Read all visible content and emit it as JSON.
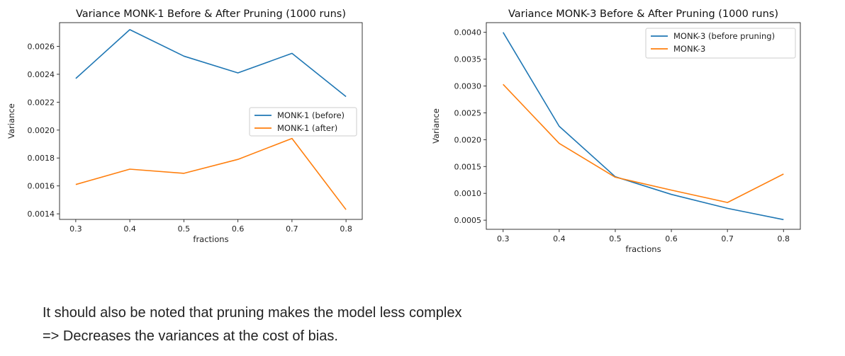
{
  "chart_data": [
    {
      "type": "line",
      "title": "Variance MONK-1 Before & After Pruning (1000 runs)",
      "xlabel": "fractions",
      "ylabel": "Variance",
      "x": [
        0.3,
        0.4,
        0.5,
        0.6,
        0.7,
        0.8
      ],
      "xticks": [
        "0.3",
        "0.4",
        "0.5",
        "0.6",
        "0.7",
        "0.8"
      ],
      "yticks": [
        "0.0014",
        "0.0016",
        "0.0018",
        "0.0020",
        "0.0022",
        "0.0024",
        "0.0026"
      ],
      "xlim": [
        0.27,
        0.83
      ],
      "ylim": [
        0.00136,
        0.00277
      ],
      "legend_position": "center-right",
      "grid": false,
      "series": [
        {
          "name": "MONK-1 (before)",
          "color": "#1f77b4",
          "values": [
            0.00237,
            0.00272,
            0.00253,
            0.00241,
            0.00255,
            0.00224
          ]
        },
        {
          "name": "MONK-1 (after)",
          "color": "#ff7f0e",
          "values": [
            0.00161,
            0.00172,
            0.00169,
            0.00179,
            0.00194,
            0.00143
          ]
        }
      ]
    },
    {
      "type": "line",
      "title": "Variance MONK-3 Before & After Pruning (1000 runs)",
      "xlabel": "fractions",
      "ylabel": "Variance",
      "x": [
        0.3,
        0.4,
        0.5,
        0.6,
        0.7,
        0.8
      ],
      "xticks": [
        "0.3",
        "0.4",
        "0.5",
        "0.6",
        "0.7",
        "0.8"
      ],
      "yticks": [
        "0.0005",
        "0.0010",
        "0.0015",
        "0.0020",
        "0.0025",
        "0.0030",
        "0.0035",
        "0.0040"
      ],
      "xlim": [
        0.27,
        0.83
      ],
      "ylim": [
        0.00033,
        0.00418
      ],
      "legend_position": "top-right",
      "grid": false,
      "series": [
        {
          "name": "MONK-3 (before pruning)",
          "color": "#1f77b4",
          "values": [
            0.004,
            0.00225,
            0.00131,
            0.00098,
            0.00072,
            0.00051
          ]
        },
        {
          "name": "MONK-3",
          "color": "#ff7f0e",
          "values": [
            0.00303,
            0.00193,
            0.0013,
            0.00106,
            0.00083,
            0.00136
          ]
        }
      ]
    }
  ],
  "notes": [
    "It should also be noted that pruning makes the model less complex",
    "=> Decreases the variances at the cost of bias."
  ]
}
